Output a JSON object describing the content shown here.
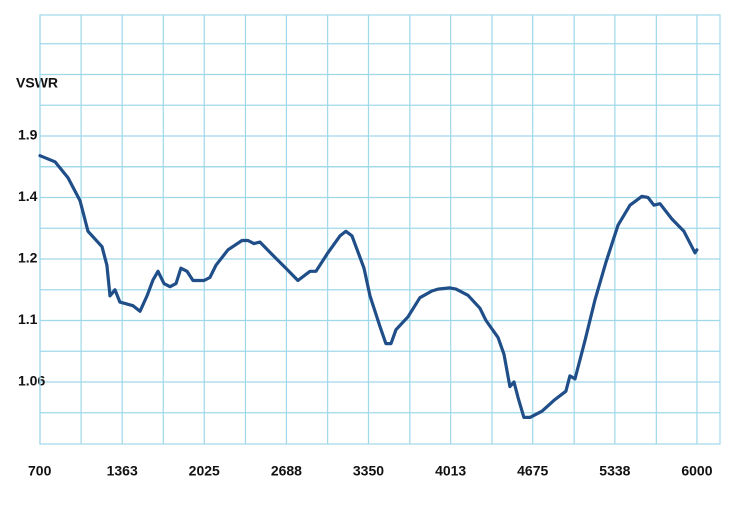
{
  "chart_data": {
    "type": "line",
    "y_label": "VSWR",
    "color": "#1f4e89",
    "grid": true,
    "x": [
      700,
      821,
      926,
      1023,
      1087,
      1200,
      1240,
      1265,
      1305,
      1345,
      1450,
      1507,
      1563,
      1612,
      1652,
      1700,
      1749,
      1797,
      1837,
      1886,
      1934,
      2023,
      2071,
      2120,
      2217,
      2330,
      2378,
      2426,
      2475,
      2572,
      2684,
      2781,
      2878,
      2927,
      3023,
      3120,
      3168,
      3217,
      3314,
      3362,
      3443,
      3491,
      3532,
      3572,
      3669,
      3765,
      3862,
      3911,
      4007,
      4056,
      4153,
      4249,
      4298,
      4395,
      4443,
      4491,
      4524,
      4556,
      4604,
      4653,
      4750,
      4846,
      4943,
      4975,
      5016,
      5097,
      5177,
      5266,
      5363,
      5460,
      5556,
      5605,
      5653,
      5702,
      5798,
      5895,
      5984,
      6000
    ],
    "values": [
      1.74,
      1.69,
      1.56,
      1.39,
      1.29,
      1.24,
      1.19,
      1.14,
      1.15,
      1.13,
      1.124,
      1.115,
      1.14,
      1.166,
      1.18,
      1.16,
      1.155,
      1.16,
      1.185,
      1.18,
      1.165,
      1.165,
      1.17,
      1.19,
      1.23,
      1.26,
      1.26,
      1.25,
      1.255,
      1.215,
      1.185,
      1.165,
      1.18,
      1.18,
      1.22,
      1.275,
      1.29,
      1.275,
      1.185,
      1.14,
      1.096,
      1.085,
      1.085,
      1.094,
      1.106,
      1.137,
      1.148,
      1.151,
      1.153,
      1.151,
      1.141,
      1.12,
      1.1,
      1.089,
      1.078,
      1.057,
      1.06,
      1.05,
      1.037,
      1.037,
      1.041,
      1.048,
      1.054,
      1.064,
      1.062,
      1.087,
      1.133,
      1.195,
      1.31,
      1.375,
      1.41,
      1.4,
      1.375,
      1.38,
      1.33,
      1.29,
      1.22,
      1.23
    ],
    "xlim": [
      700,
      6186
    ],
    "xticks": [
      700,
      1363,
      2025,
      2688,
      3350,
      4013,
      4675,
      5338,
      6000
    ],
    "yticks": [
      1.9,
      1.4,
      1.2,
      1.1,
      1.06
    ]
  }
}
